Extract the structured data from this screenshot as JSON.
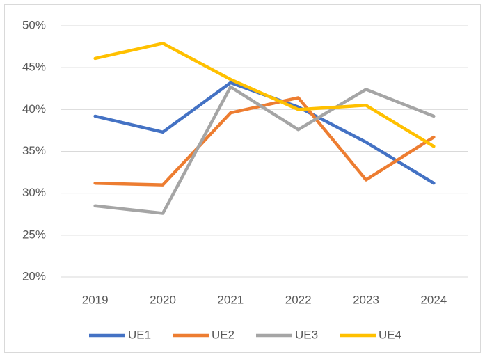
{
  "chart_data": {
    "type": "line",
    "categories": [
      "2019",
      "2020",
      "2021",
      "2022",
      "2023",
      "2024"
    ],
    "series": [
      {
        "name": "UE1",
        "color": "#4472c4",
        "values": [
          39.2,
          37.3,
          43.2,
          40.3,
          36.1,
          31.2
        ]
      },
      {
        "name": "UE2",
        "color": "#ed7d31",
        "values": [
          31.2,
          31.0,
          39.6,
          41.4,
          31.6,
          36.7
        ]
      },
      {
        "name": "UE3",
        "color": "#a5a5a5",
        "values": [
          28.5,
          27.6,
          42.7,
          37.6,
          42.4,
          39.2
        ]
      },
      {
        "name": "UE4",
        "color": "#ffc000",
        "values": [
          46.1,
          47.9,
          43.6,
          40.0,
          40.5,
          35.6
        ]
      }
    ],
    "ylim": [
      20,
      50
    ],
    "yticks": [
      {
        "value": 20,
        "label": "20%"
      },
      {
        "value": 25,
        "label": "25%"
      },
      {
        "value": 30,
        "label": "30%"
      },
      {
        "value": 35,
        "label": "35%"
      },
      {
        "value": 40,
        "label": "40%"
      },
      {
        "value": 45,
        "label": "45%"
      },
      {
        "value": 50,
        "label": "50%"
      }
    ],
    "grid": true,
    "legend": "bottom"
  }
}
